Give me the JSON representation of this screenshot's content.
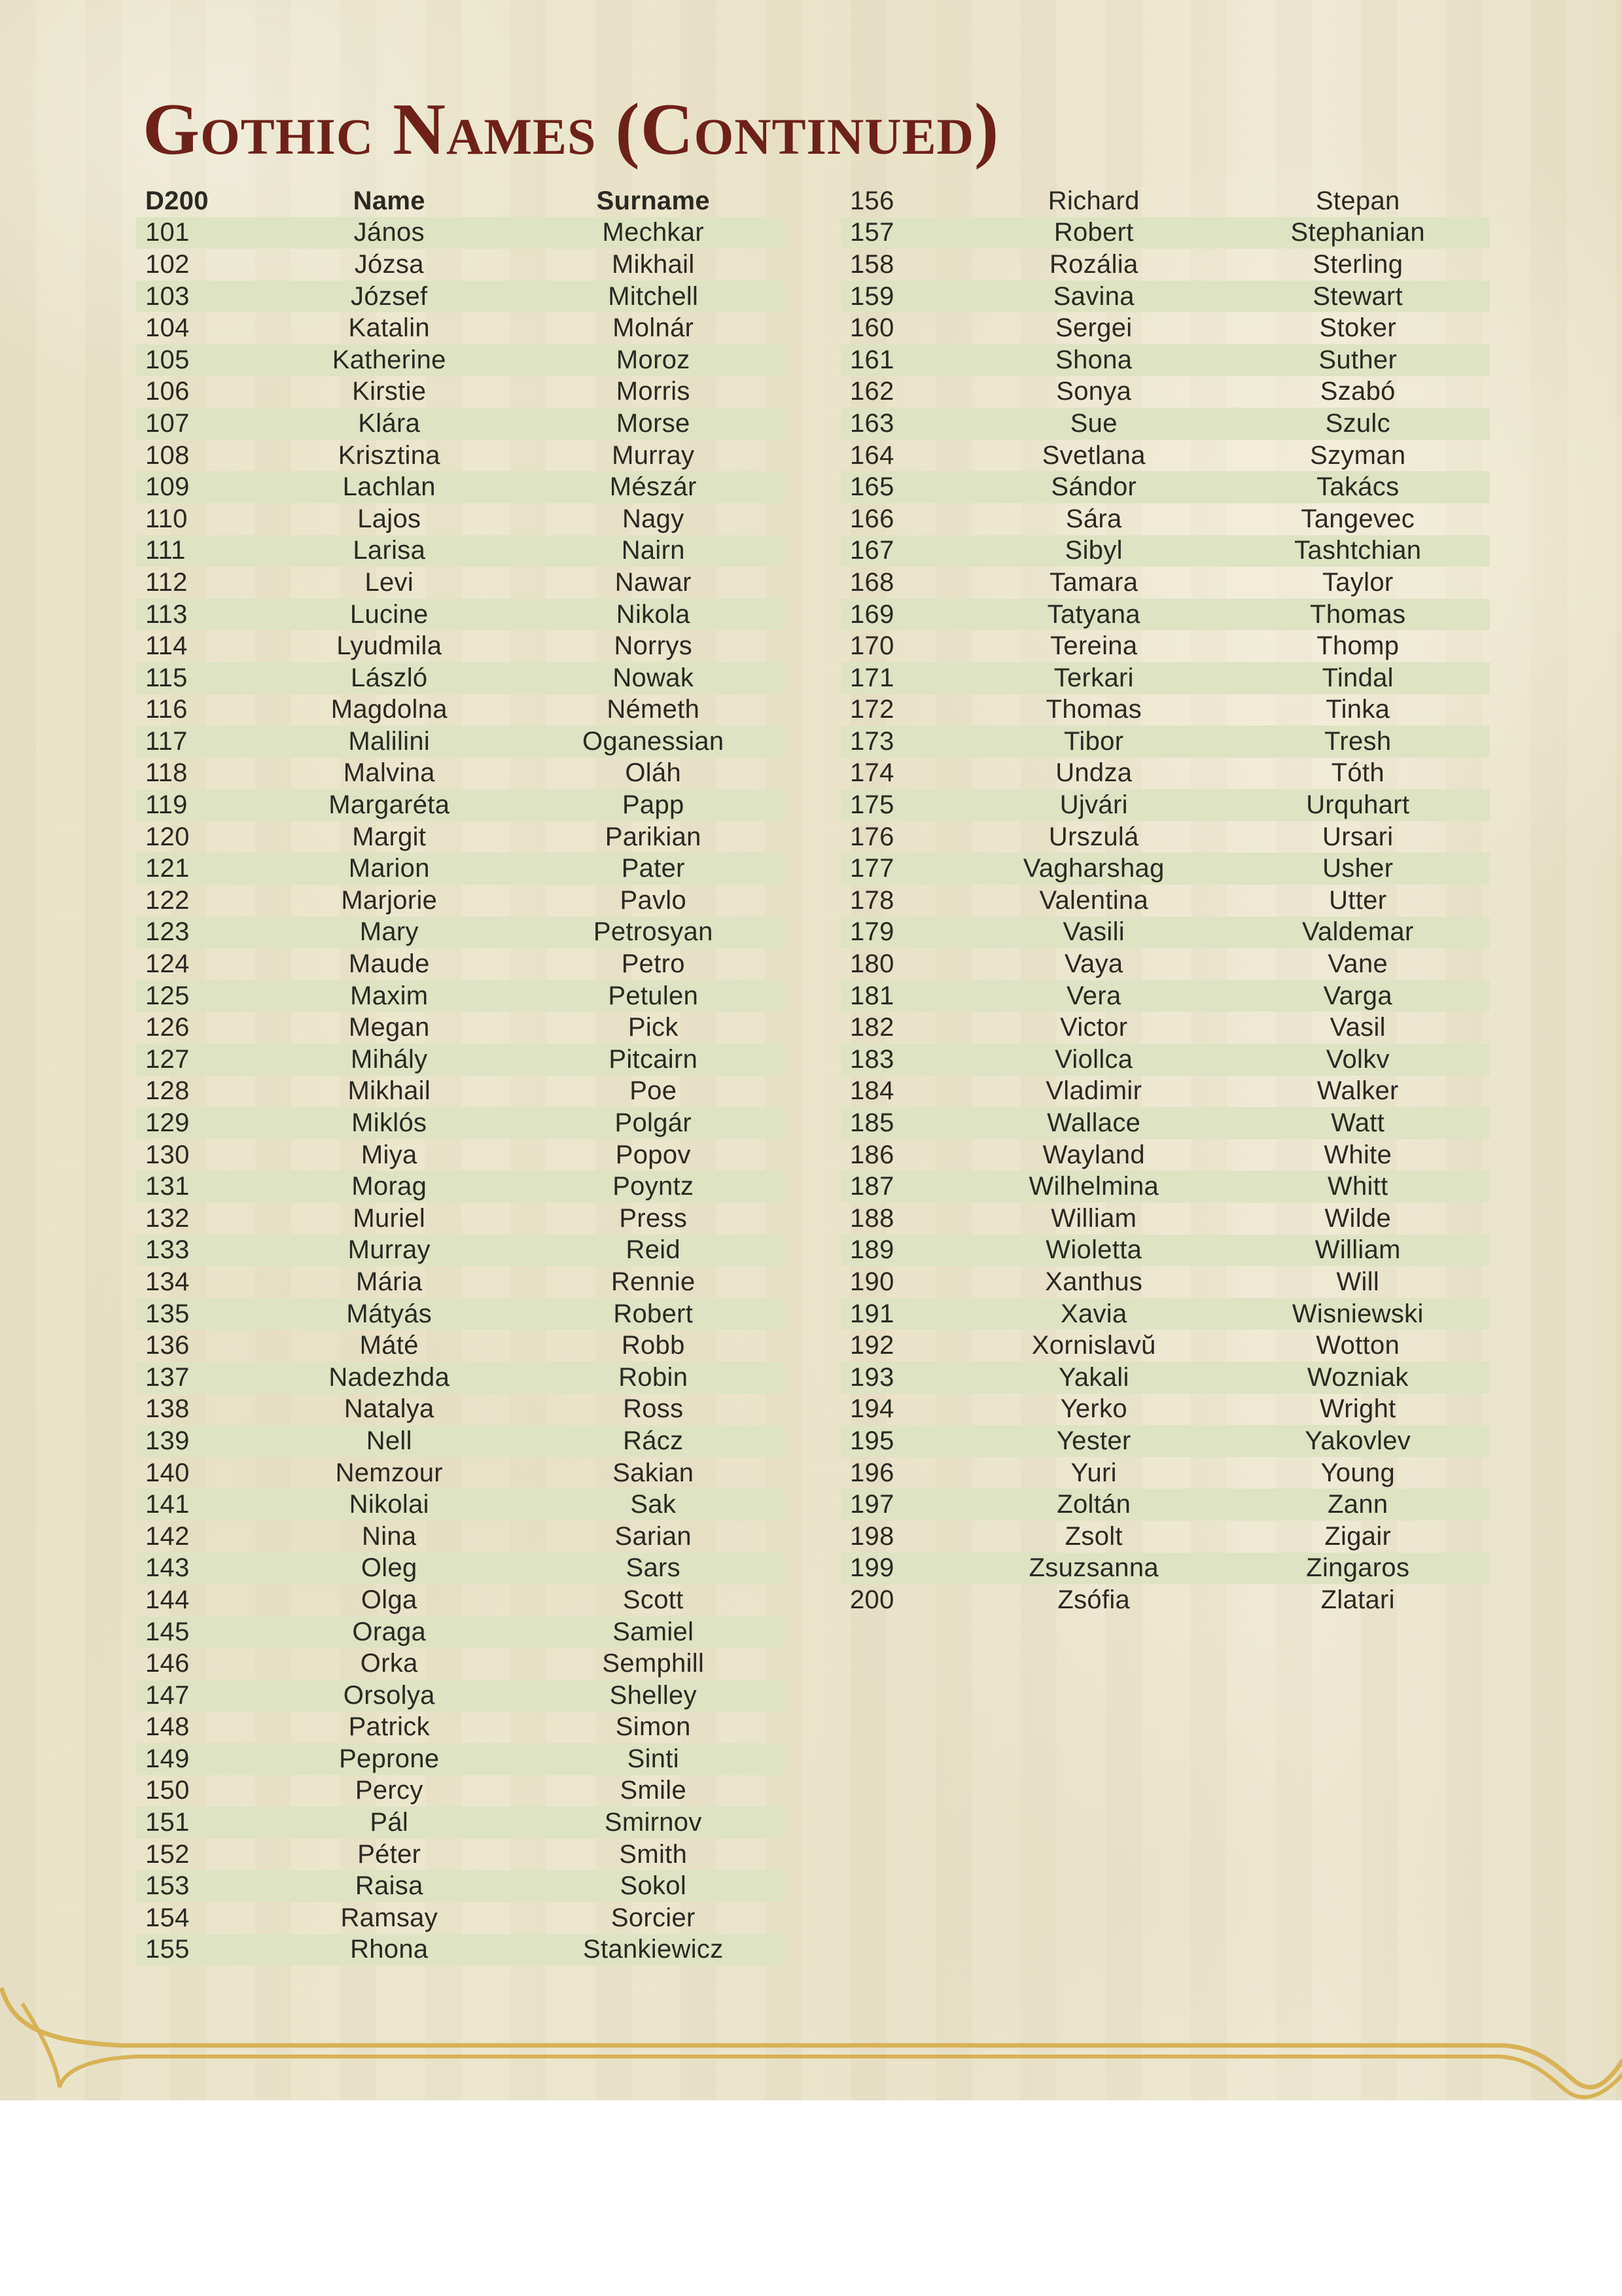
{
  "title": "Gothic Names (Continued)",
  "table": {
    "headers": {
      "d200": "D200",
      "name": "Name",
      "surname": "Surname"
    }
  },
  "colors": {
    "parchment": "#ebe4ca",
    "row_shade": "#dee3c3",
    "title": "#6e2119",
    "text": "#2a2922",
    "flourish_gold": "#d8b256"
  },
  "left_rows": [
    [
      "101",
      "János",
      "Mechkar"
    ],
    [
      "102",
      "Józsa",
      "Mikhail"
    ],
    [
      "103",
      "József",
      "Mitchell"
    ],
    [
      "104",
      "Katalin",
      "Molnár"
    ],
    [
      "105",
      "Katherine",
      "Moroz"
    ],
    [
      "106",
      "Kirstie",
      "Morris"
    ],
    [
      "107",
      "Klára",
      "Morse"
    ],
    [
      "108",
      "Krisztina",
      "Murray"
    ],
    [
      "109",
      "Lachlan",
      "Mészár"
    ],
    [
      "110",
      "Lajos",
      "Nagy"
    ],
    [
      "111",
      "Larisa",
      "Nairn"
    ],
    [
      "112",
      "Levi",
      "Nawar"
    ],
    [
      "113",
      "Lucine",
      "Nikola"
    ],
    [
      "114",
      "Lyudmila",
      "Norrys"
    ],
    [
      "115",
      "László",
      "Nowak"
    ],
    [
      "116",
      "Magdolna",
      "Németh"
    ],
    [
      "117",
      "Malilini",
      "Oganessian"
    ],
    [
      "118",
      "Malvina",
      "Oláh"
    ],
    [
      "119",
      "Margaréta",
      "Papp"
    ],
    [
      "120",
      "Margit",
      "Parikian"
    ],
    [
      "121",
      "Marion",
      "Pater"
    ],
    [
      "122",
      "Marjorie",
      "Pavlo"
    ],
    [
      "123",
      "Mary",
      "Petrosyan"
    ],
    [
      "124",
      "Maude",
      "Petro"
    ],
    [
      "125",
      "Maxim",
      "Petulen"
    ],
    [
      "126",
      "Megan",
      "Pick"
    ],
    [
      "127",
      "Mihály",
      "Pitcairn"
    ],
    [
      "128",
      "Mikhail",
      "Poe"
    ],
    [
      "129",
      "Miklós",
      "Polgár"
    ],
    [
      "130",
      "Miya",
      "Popov"
    ],
    [
      "131",
      "Morag",
      "Poyntz"
    ],
    [
      "132",
      "Muriel",
      "Press"
    ],
    [
      "133",
      "Murray",
      "Reid"
    ],
    [
      "134",
      "Mária",
      "Rennie"
    ],
    [
      "135",
      "Mátyás",
      "Robert"
    ],
    [
      "136",
      "Máté",
      "Robb"
    ],
    [
      "137",
      "Nadezhda",
      "Robin"
    ],
    [
      "138",
      "Natalya",
      "Ross"
    ],
    [
      "139",
      "Nell",
      "Rácz"
    ],
    [
      "140",
      "Nemzour",
      "Sakian"
    ],
    [
      "141",
      "Nikolai",
      "Sak"
    ],
    [
      "142",
      "Nina",
      "Sarian"
    ],
    [
      "143",
      "Oleg",
      "Sars"
    ],
    [
      "144",
      "Olga",
      "Scott"
    ],
    [
      "145",
      "Oraga",
      "Samiel"
    ],
    [
      "146",
      "Orka",
      "Semphill"
    ],
    [
      "147",
      "Orsolya",
      "Shelley"
    ],
    [
      "148",
      "Patrick",
      "Simon"
    ],
    [
      "149",
      "Peprone",
      "Sinti"
    ],
    [
      "150",
      "Percy",
      "Smile"
    ],
    [
      "151",
      "Pál",
      "Smirnov"
    ],
    [
      "152",
      "Péter",
      "Smith"
    ],
    [
      "153",
      "Raisa",
      "Sokol"
    ],
    [
      "154",
      "Ramsay",
      "Sorcier"
    ],
    [
      "155",
      "Rhona",
      "Stankiewicz"
    ]
  ],
  "right_rows": [
    [
      "156",
      "Richard",
      "Stepan"
    ],
    [
      "157",
      "Robert",
      "Stephanian"
    ],
    [
      "158",
      "Rozália",
      "Sterling"
    ],
    [
      "159",
      "Savina",
      "Stewart"
    ],
    [
      "160",
      "Sergei",
      "Stoker"
    ],
    [
      "161",
      "Shona",
      "Suther"
    ],
    [
      "162",
      "Sonya",
      "Szabó"
    ],
    [
      "163",
      "Sue",
      "Szulc"
    ],
    [
      "164",
      "Svetlana",
      "Szyman"
    ],
    [
      "165",
      "Sándor",
      "Takács"
    ],
    [
      "166",
      "Sára",
      "Tangevec"
    ],
    [
      "167",
      "Sibyl",
      "Tashtchian"
    ],
    [
      "168",
      "Tamara",
      "Taylor"
    ],
    [
      "169",
      "Tatyana",
      "Thomas"
    ],
    [
      "170",
      "Tereina",
      "Thomp"
    ],
    [
      "171",
      "Terkari",
      "Tindal"
    ],
    [
      "172",
      "Thomas",
      "Tinka"
    ],
    [
      "173",
      "Tibor",
      "Tresh"
    ],
    [
      "174",
      "Undza",
      "Tóth"
    ],
    [
      "175",
      "Ujvári",
      "Urquhart"
    ],
    [
      "176",
      "Urszulá",
      "Ursari"
    ],
    [
      "177",
      "Vagharshag",
      "Usher"
    ],
    [
      "178",
      "Valentina",
      "Utter"
    ],
    [
      "179",
      "Vasili",
      "Valdemar"
    ],
    [
      "180",
      "Vaya",
      "Vane"
    ],
    [
      "181",
      "Vera",
      "Varga"
    ],
    [
      "182",
      "Victor",
      "Vasil"
    ],
    [
      "183",
      "Viollca",
      "Volkv"
    ],
    [
      "184",
      "Vladimir",
      "Walker"
    ],
    [
      "185",
      "Wallace",
      "Watt"
    ],
    [
      "186",
      "Wayland",
      "White"
    ],
    [
      "187",
      "Wilhelmina",
      "Whitt"
    ],
    [
      "188",
      "William",
      "Wilde"
    ],
    [
      "189",
      "Wioletta",
      "William"
    ],
    [
      "190",
      "Xanthus",
      "Will"
    ],
    [
      "191",
      "Xavia",
      "Wisniewski"
    ],
    [
      "192",
      "Xornislavŭ",
      "Wotton"
    ],
    [
      "193",
      "Yakali",
      "Wozniak"
    ],
    [
      "194",
      "Yerko",
      "Wright"
    ],
    [
      "195",
      "Yester",
      "Yakovlev"
    ],
    [
      "196",
      "Yuri",
      "Young"
    ],
    [
      "197",
      "Zoltán",
      "Zann"
    ],
    [
      "198",
      "Zsolt",
      "Zigair"
    ],
    [
      "199",
      "Zsuzsanna",
      "Zingaros"
    ],
    [
      "200",
      "Zsófia",
      "Zlatari"
    ]
  ]
}
